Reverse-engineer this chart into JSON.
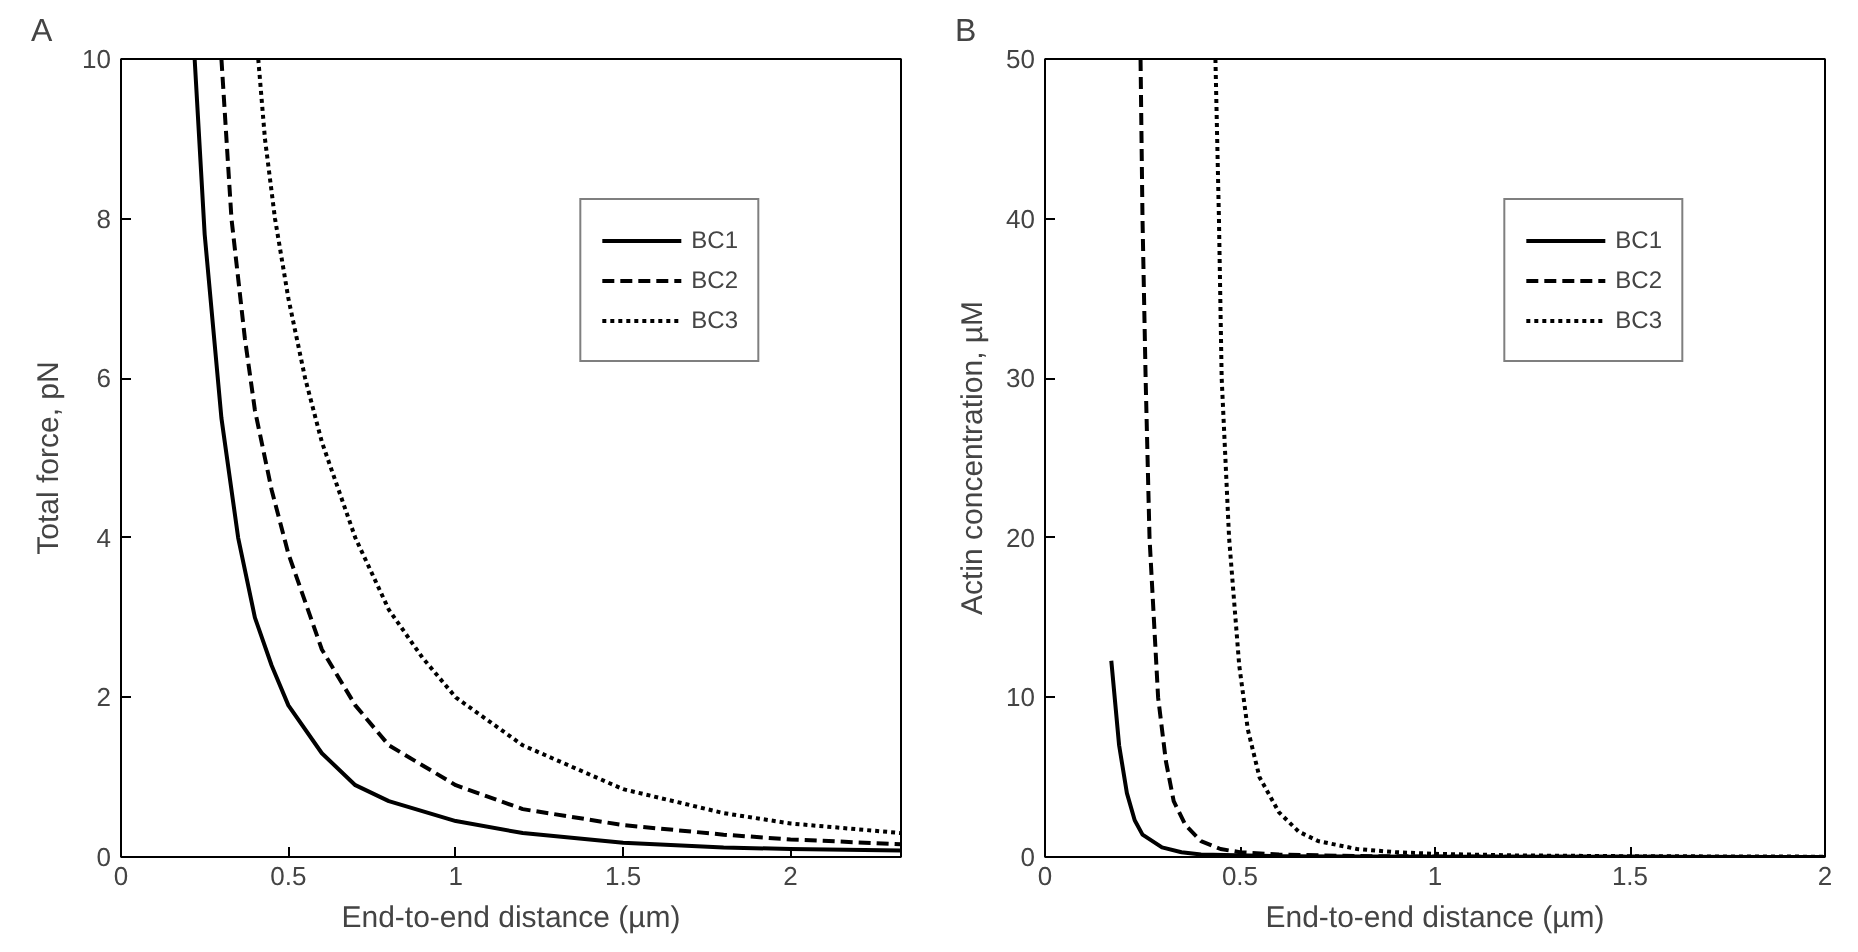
{
  "chart_data": [
    {
      "type": "line",
      "title": "A",
      "xlabel": "End-to-end distance (µm)",
      "ylabel": "Total force, pN",
      "xlim": [
        0,
        2.33
      ],
      "ylim": [
        0,
        10
      ],
      "xticks": [
        0,
        0.5,
        1,
        1.5,
        2
      ],
      "yticks": [
        0,
        2,
        4,
        6,
        8,
        10
      ],
      "grid": false,
      "legend": "top right",
      "series": [
        {
          "name": "BC1",
          "color": "#000000",
          "line_style": "solid",
          "x": [
            0.22,
            0.25,
            0.3,
            0.35,
            0.4,
            0.45,
            0.5,
            0.6,
            0.7,
            0.8,
            1.0,
            1.2,
            1.5,
            1.8,
            2.0,
            2.33
          ],
          "values": [
            10,
            7.8,
            5.5,
            4.0,
            3.0,
            2.4,
            1.9,
            1.3,
            0.9,
            0.7,
            0.45,
            0.3,
            0.18,
            0.12,
            0.1,
            0.08
          ]
        },
        {
          "name": "BC2",
          "color": "#000000",
          "line_style": "dashed",
          "x": [
            0.3,
            0.33,
            0.37,
            0.4,
            0.45,
            0.5,
            0.6,
            0.7,
            0.8,
            1.0,
            1.2,
            1.5,
            1.8,
            2.0,
            2.33
          ],
          "values": [
            10,
            8,
            6.5,
            5.6,
            4.6,
            3.8,
            2.6,
            1.9,
            1.4,
            0.9,
            0.6,
            0.4,
            0.28,
            0.22,
            0.16
          ]
        },
        {
          "name": "BC3",
          "color": "#000000",
          "line_style": "dotted",
          "x": [
            0.41,
            0.43,
            0.46,
            0.5,
            0.55,
            0.6,
            0.7,
            0.8,
            0.9,
            1.0,
            1.2,
            1.5,
            1.8,
            2.0,
            2.33
          ],
          "values": [
            10,
            9,
            8,
            7,
            6,
            5.2,
            4.0,
            3.1,
            2.5,
            2.0,
            1.4,
            0.85,
            0.55,
            0.42,
            0.3
          ]
        }
      ]
    },
    {
      "type": "line",
      "title": "B",
      "xlabel": "End-to-end distance (µm)",
      "ylabel": "Actin concentration, µM",
      "xlim": [
        0,
        2
      ],
      "ylim": [
        0,
        50
      ],
      "xticks": [
        0,
        0.5,
        1,
        1.5,
        2
      ],
      "yticks": [
        0,
        10,
        20,
        30,
        40,
        50
      ],
      "grid": false,
      "legend": "top right",
      "series": [
        {
          "name": "BC1",
          "color": "#000000",
          "line_style": "solid",
          "x": [
            0.17,
            0.19,
            0.21,
            0.23,
            0.25,
            0.3,
            0.35,
            0.4,
            0.6,
            1.0,
            1.5,
            2.0
          ],
          "values": [
            12.3,
            7,
            4,
            2.3,
            1.4,
            0.6,
            0.3,
            0.15,
            0.05,
            0.02,
            0.01,
            0
          ]
        },
        {
          "name": "BC2",
          "color": "#000000",
          "line_style": "dashed",
          "x": [
            0.245,
            0.25,
            0.258,
            0.268,
            0.29,
            0.31,
            0.33,
            0.36,
            0.4,
            0.45,
            0.5,
            0.6,
            0.8,
            1.0,
            1.5,
            2.0
          ],
          "values": [
            50,
            40,
            30,
            20,
            10,
            6,
            3.5,
            2,
            1.0,
            0.5,
            0.3,
            0.15,
            0.06,
            0.03,
            0.01,
            0
          ]
        },
        {
          "name": "BC3",
          "color": "#000000",
          "line_style": "dotted",
          "x": [
            0.437,
            0.446,
            0.453,
            0.472,
            0.498,
            0.52,
            0.55,
            0.6,
            0.65,
            0.7,
            0.8,
            0.9,
            1.0,
            1.2,
            1.5,
            2.0
          ],
          "values": [
            50,
            40,
            30,
            20,
            12,
            8,
            5,
            2.8,
            1.6,
            1.0,
            0.5,
            0.3,
            0.2,
            0.1,
            0.05,
            0.02
          ]
        }
      ]
    }
  ]
}
